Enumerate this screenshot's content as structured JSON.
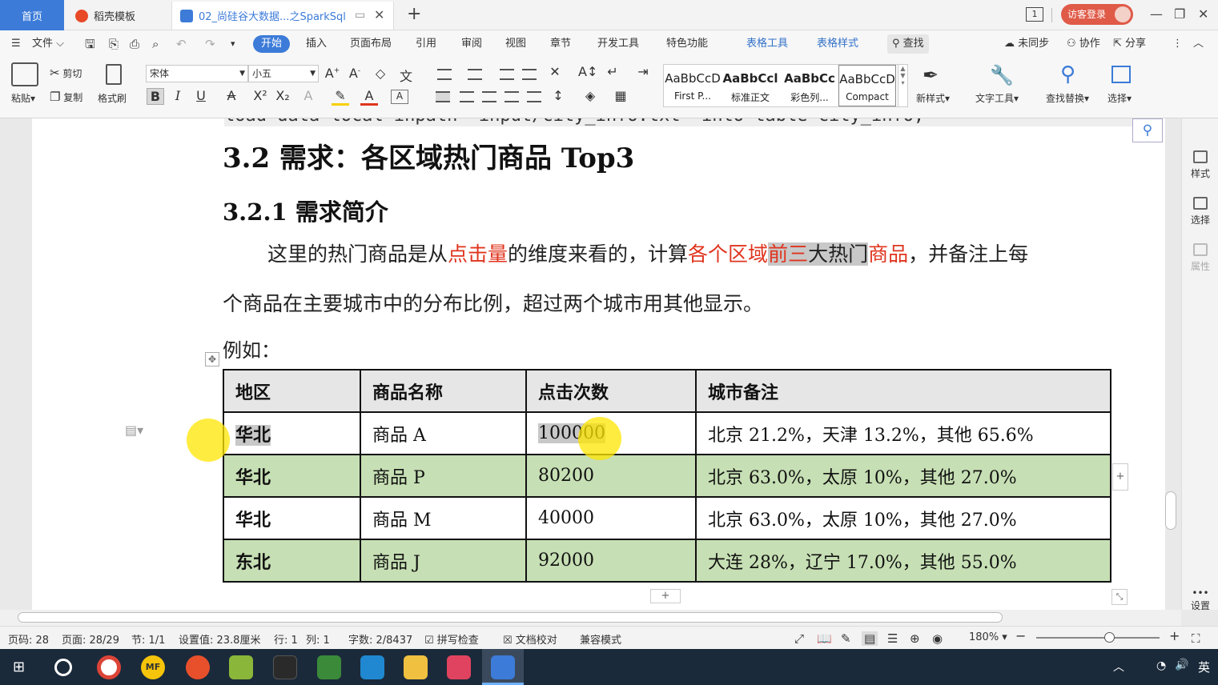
{
  "tabs": [
    {
      "label": "首页",
      "active": false
    },
    {
      "label": "稻壳模板",
      "active": false
    },
    {
      "label": "02_尚硅谷大数据...之SparkSql",
      "active": true
    }
  ],
  "titlebar": {
    "new_tab": "+",
    "page_badge": "1",
    "login_label": "访客登录"
  },
  "menu": {
    "file": "文件",
    "items": [
      "开始",
      "插入",
      "页面布局",
      "引用",
      "审阅",
      "视图",
      "章节",
      "开发工具",
      "特色功能"
    ],
    "context_items": [
      "表格工具",
      "表格样式"
    ],
    "search": "查找",
    "sync": "未同步",
    "collab": "协作",
    "share": "分享"
  },
  "ribbon": {
    "paste": "粘贴",
    "cut": "剪切",
    "copy": "复制",
    "format_painter": "格式刷",
    "font_name": "宋体",
    "font_size": "小五",
    "styles": [
      {
        "preview": "AaBbCcD",
        "name": "First P..."
      },
      {
        "preview": "AaBbCcl",
        "name": "标准正文"
      },
      {
        "preview": "AaBbCc",
        "name": "彩色列..."
      },
      {
        "preview": "AaBbCcD",
        "name": "Compact"
      }
    ],
    "new_style": "新样式",
    "text_tools": "文字工具",
    "find_replace": "查找替换",
    "select": "选择"
  },
  "document": {
    "prev_line": "load data local inpath 'input/city_info.txt' into table city_info;",
    "heading2": "3.2  需求：各区域热门商品 Top3",
    "heading3": "3.2.1  需求简介",
    "para1": {
      "p1": "这里的热门商品是从",
      "p2": "点击量",
      "p3": "的维度来看的，计算",
      "p4": "各个区域",
      "p5": "前三",
      "p6": "大热门",
      "p7": "商品",
      "p8": "，并备注上每"
    },
    "para2": "个商品在主要城市中的分布比例，超过两个城市用其他显示。",
    "para3": "例如：",
    "table": {
      "headers": [
        "地区",
        "商品名称",
        "点击次数",
        "城市备注"
      ],
      "rows": [
        [
          "华北",
          "商品 A",
          "100000",
          "北京 21.2%，天津 13.2%，其他 65.6%"
        ],
        [
          "华北",
          "商品 P",
          "80200",
          "北京 63.0%，太原 10%，其他 27.0%"
        ],
        [
          "华北",
          "商品 M",
          "40000",
          "北京 63.0%，太原 10%，其他 27.0%"
        ],
        [
          "东北",
          "商品 J",
          "92000",
          "大连 28%，辽宁 17.0%，其他  55.0%"
        ]
      ]
    }
  },
  "sidebar": {
    "items": [
      "样式",
      "选择",
      "属性",
      "设置"
    ]
  },
  "status": {
    "page_code": "页码: 28",
    "page": "页面: 28/29",
    "section": "节: 1/1",
    "setting": "设置值: 23.8厘米",
    "row": "行: 1",
    "col": "列: 1",
    "words": "字数: 2/8437",
    "spell": "拼写检查",
    "proof": "文档校对",
    "compat": "兼容模式",
    "zoom": "180%"
  },
  "taskbar": {
    "ime": "英"
  },
  "colors": {
    "accent": "#3c7bd8",
    "table_green": "#c6dfb4",
    "red_text": "#e0341e",
    "taskbar": "#1b2a3a"
  }
}
